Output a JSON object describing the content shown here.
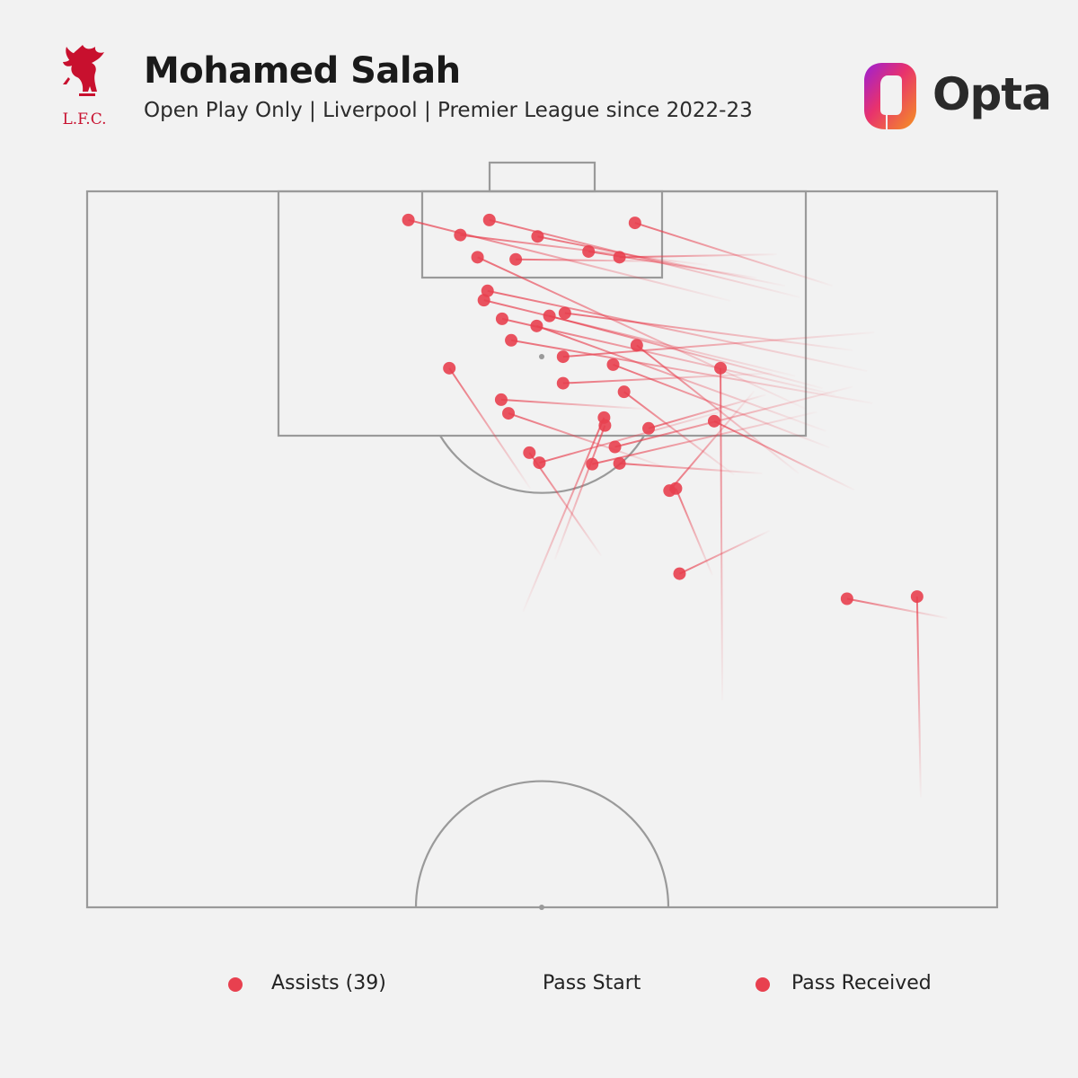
{
  "header": {
    "title": "Mohamed Salah",
    "subtitle": "Open Play Only | Liverpool | Premier League since 2022-23",
    "club_logo_text": "L.F.C.",
    "brand_text": "Opta"
  },
  "colors": {
    "accent": "#e8404f",
    "pitch_lines": "#9a9a9a",
    "background": "#f2f2f2",
    "crest": "#c8102e"
  },
  "legend": {
    "assists_label": "Assists (39)",
    "pass_start_label": "Pass Start",
    "pass_received_label": "Pass Received"
  },
  "chart_data": {
    "type": "scatter",
    "description_units": "pitch coordinates: x = lateral position (0 = left touchline, 100 = right touchline), y = distance from the goal line the team attacks (0 = goal line, 100 = halfway line)",
    "x_range": [
      0,
      100
    ],
    "y_range": [
      0,
      100
    ],
    "series": [
      {
        "name": "Assists (39)",
        "passes": [
          {
            "start": [
              81.9,
              13.2
            ],
            "end": [
              60.2,
              4.4
            ]
          },
          {
            "start": [
              70.7,
              15.3
            ],
            "end": [
              35.3,
              4.0
            ]
          },
          {
            "start": [
              76.7,
              13.2
            ],
            "end": [
              49.5,
              6.3
            ]
          },
          {
            "start": [
              78.3,
              14.8
            ],
            "end": [
              44.2,
              4.0
            ]
          },
          {
            "start": [
              68.2,
              10.3
            ],
            "end": [
              41.0,
              6.1
            ]
          },
          {
            "start": [
              75.8,
              8.8
            ],
            "end": [
              58.5,
              9.2
            ]
          },
          {
            "start": [
              64.8,
              9.8
            ],
            "end": [
              47.1,
              9.5
            ]
          },
          {
            "start": [
              73.6,
              12.1
            ],
            "end": [
              55.1,
              8.4
            ]
          },
          {
            "start": [
              79.0,
              30.4
            ],
            "end": [
              42.9,
              9.2
            ]
          },
          {
            "start": [
              77.8,
              25.8
            ],
            "end": [
              43.6,
              15.2
            ]
          },
          {
            "start": [
              85.7,
              25.1
            ],
            "end": [
              44.0,
              13.9
            ]
          },
          {
            "start": [
              84.1,
              22.2
            ],
            "end": [
              52.5,
              17.0
            ]
          },
          {
            "start": [
              80.8,
              27.5
            ],
            "end": [
              50.8,
              17.4
            ]
          },
          {
            "start": [
              82.2,
              28.4
            ],
            "end": [
              45.6,
              17.8
            ]
          },
          {
            "start": [
              86.3,
              29.6
            ],
            "end": [
              46.6,
              20.8
            ]
          },
          {
            "start": [
              81.6,
              35.8
            ],
            "end": [
              57.8,
              24.2
            ]
          },
          {
            "start": [
              81.2,
              33.5
            ],
            "end": [
              49.4,
              18.8
            ]
          },
          {
            "start": [
              71.1,
              39.6
            ],
            "end": [
              59.0,
              28.0
            ]
          },
          {
            "start": [
              86.5,
              19.7
            ],
            "end": [
              52.3,
              23.1
            ]
          },
          {
            "start": [
              78.2,
              39.4
            ],
            "end": [
              60.4,
              21.5
            ]
          },
          {
            "start": [
              61.4,
              30.4
            ],
            "end": [
              45.5,
              29.1
            ]
          },
          {
            "start": [
              63.7,
              38.6
            ],
            "end": [
              46.3,
              31.0
            ]
          },
          {
            "start": [
              75.3,
              25.4
            ],
            "end": [
              52.3,
              26.8
            ]
          },
          {
            "start": [
              84.1,
              27.3
            ],
            "end": [
              58.0,
              35.7
            ]
          },
          {
            "start": [
              80.2,
              30.8
            ],
            "end": [
              55.5,
              38.1
            ]
          },
          {
            "start": [
              68.7,
              53.6
            ],
            "end": [
              64.7,
              41.5
            ]
          },
          {
            "start": [
              84.3,
              41.7
            ],
            "end": [
              68.9,
              32.1
            ]
          },
          {
            "start": [
              74.2,
              39.4
            ],
            "end": [
              58.5,
              38.0
            ]
          },
          {
            "start": [
              48.7,
              41.5
            ],
            "end": [
              39.8,
              24.7
            ]
          },
          {
            "start": [
              69.8,
              71.1
            ],
            "end": [
              69.6,
              24.7
            ]
          },
          {
            "start": [
              73.3,
              27.9
            ],
            "end": [
              64.0,
              41.8
            ]
          },
          {
            "start": [
              74.6,
              28.4
            ],
            "end": [
              61.7,
              33.1
            ]
          },
          {
            "start": [
              47.9,
              58.7
            ],
            "end": [
              56.8,
              31.6
            ]
          },
          {
            "start": [
              51.4,
              51.4
            ],
            "end": [
              56.9,
              32.7
            ]
          },
          {
            "start": [
              91.6,
              84.6
            ],
            "end": [
              91.2,
              56.6
            ]
          },
          {
            "start": [
              94.5,
              59.6
            ],
            "end": [
              83.5,
              56.9
            ]
          },
          {
            "start": [
              70.7,
              30.4
            ],
            "end": [
              49.7,
              37.9
            ]
          },
          {
            "start": [
              56.5,
              50.9
            ],
            "end": [
              48.6,
              36.5
            ]
          },
          {
            "start": [
              75.0,
              47.4
            ],
            "end": [
              65.1,
              53.4
            ]
          }
        ]
      }
    ],
    "grid": false,
    "legend_position": "bottom"
  }
}
